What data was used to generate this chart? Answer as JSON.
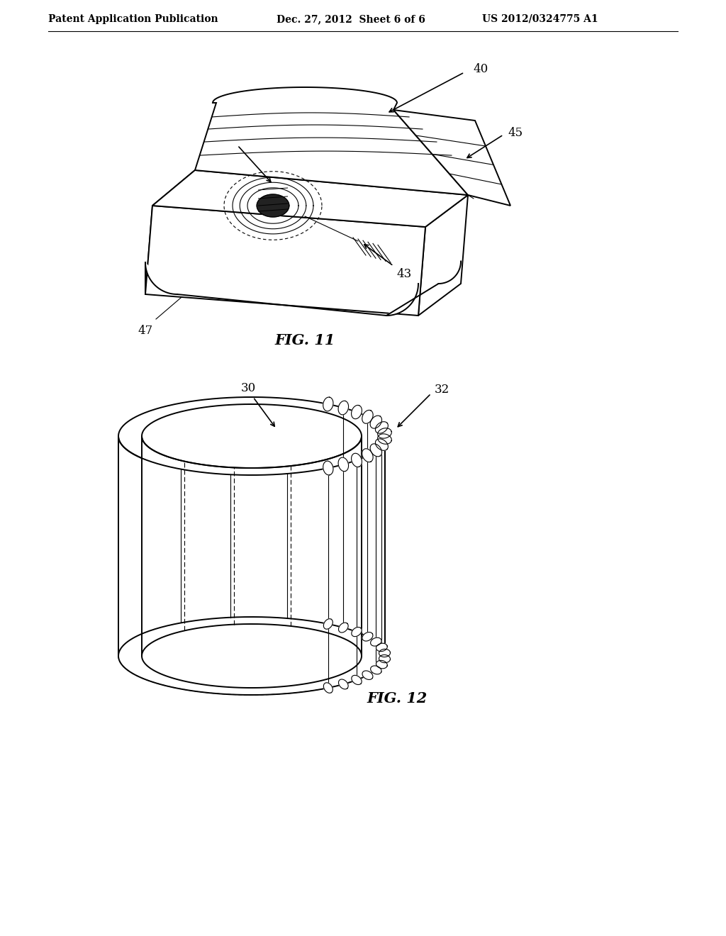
{
  "bg_color": "#ffffff",
  "header_left": "Patent Application Publication",
  "header_mid": "Dec. 27, 2012  Sheet 6 of 6",
  "header_right": "US 2012/0324775 A1",
  "fig11_label": "FIG. 11",
  "fig12_label": "FIG. 12",
  "line_color": "#000000",
  "font_size_header": 10,
  "font_size_fig": 15,
  "font_size_ref": 12
}
